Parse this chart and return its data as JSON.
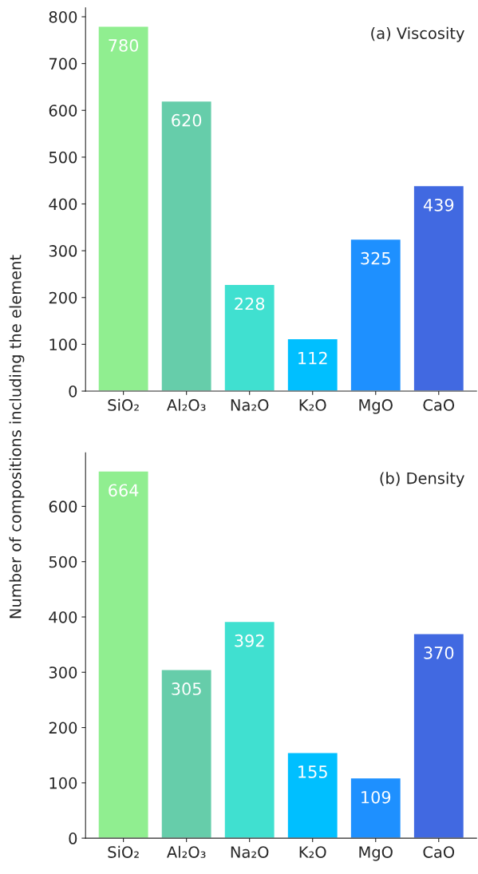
{
  "chart_data": [
    {
      "type": "bar",
      "title": "(a) Viscosity",
      "ylabel": "Number of compositions including the element",
      "categories": [
        "SiO₂",
        "Al₂O₃",
        "Na₂O",
        "K₂O",
        "MgO",
        "CaO"
      ],
      "values": [
        780,
        620,
        228,
        112,
        325,
        439
      ],
      "colors": [
        "#90ee90",
        "#66cdaa",
        "#40e0d0",
        "#00bfff",
        "#1e90ff",
        "#4169e1"
      ],
      "ylim": [
        0,
        819
      ],
      "yticks": [
        0,
        100,
        200,
        300,
        400,
        500,
        600,
        700,
        800
      ],
      "data_labels": true,
      "grid": false,
      "legend": false
    },
    {
      "type": "bar",
      "title": "(b) Density",
      "categories": [
        "SiO₂",
        "Al₂O₃",
        "Na₂O",
        "K₂O",
        "MgO",
        "CaO"
      ],
      "values": [
        664,
        305,
        392,
        155,
        109,
        370
      ],
      "colors": [
        "#90ee90",
        "#66cdaa",
        "#40e0d0",
        "#00bfff",
        "#1e90ff",
        "#4169e1"
      ],
      "ylim": [
        0,
        697
      ],
      "yticks": [
        0,
        100,
        200,
        300,
        400,
        500,
        600
      ],
      "data_labels": true,
      "grid": false,
      "legend": false
    }
  ]
}
